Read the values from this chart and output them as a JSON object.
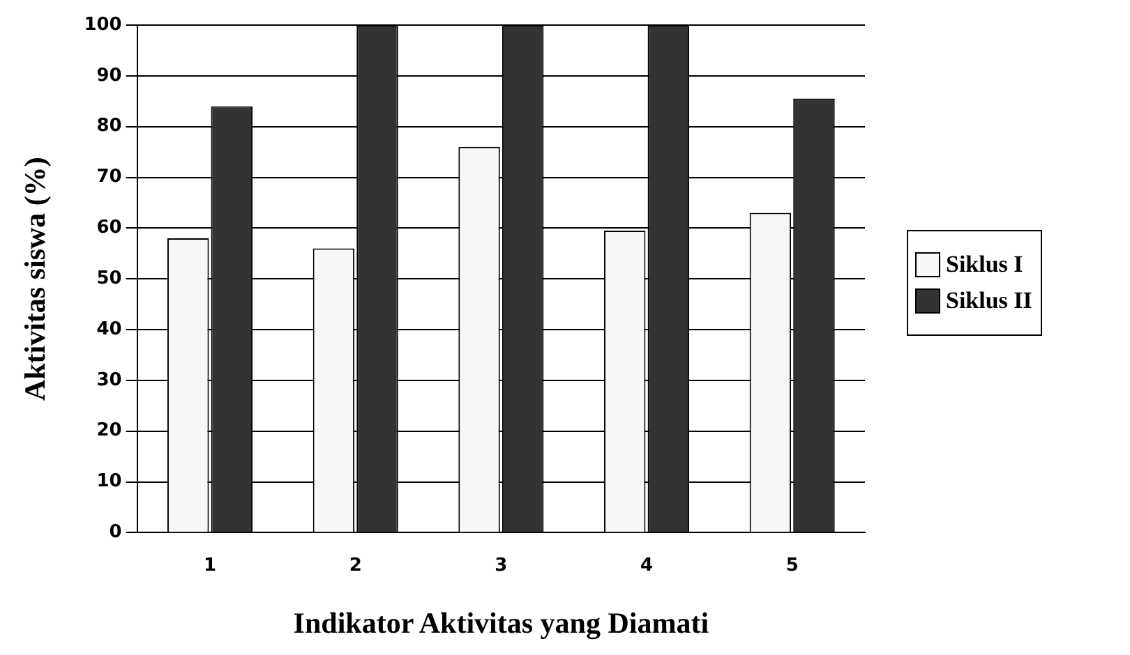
{
  "chart_data": {
    "type": "bar",
    "xlabel": "Indikator Aktivitas yang Diamati",
    "ylabel": "Aktivitas siswa (%)",
    "categories": [
      "1",
      "2",
      "3",
      "4",
      "5"
    ],
    "series": [
      {
        "name": "Siklus I",
        "color": "#f7f7f7",
        "values": [
          58,
          56,
          76,
          59.5,
          63
        ]
      },
      {
        "name": "Siklus II",
        "color": "#333333",
        "values": [
          84,
          100,
          100,
          100,
          85.5
        ]
      }
    ],
    "ylim": [
      0,
      100
    ],
    "yticks": [
      0,
      10,
      20,
      30,
      40,
      50,
      60,
      70,
      80,
      90,
      100
    ],
    "grid": "y",
    "legend": "right"
  }
}
